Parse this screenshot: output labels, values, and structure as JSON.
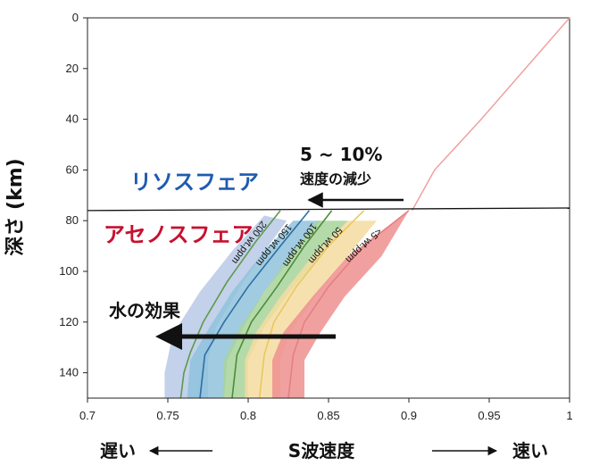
{
  "chart_data": {
    "type": "area",
    "xlabel": "S波速度",
    "ylabel": "深さ (km)",
    "xlim": [
      0.7,
      1.0
    ],
    "ylim": [
      0,
      150
    ],
    "y_inverted": true,
    "x_ticks": [
      "0.7",
      "0.75",
      "0.8",
      "0.85",
      "0.9",
      "0.95",
      "1"
    ],
    "y_ticks": [
      "0",
      "20",
      "40",
      "60",
      "80",
      "100",
      "120",
      "140"
    ],
    "x_axis_slow_label": "遅い",
    "x_axis_fast_label": "速い",
    "boundary_depth": [
      76,
      75
    ],
    "layer_labels": {
      "lithosphere": "リソスフェア",
      "asthenosphere": "アセノスフェア"
    },
    "annotations": {
      "reduction_pct": "5 ~ 10%",
      "reduction_label": "速度の減少",
      "water_effect": "水の効果"
    },
    "reference_curve": {
      "depth": [
        0,
        40,
        60,
        76
      ],
      "velocity": [
        1.0,
        0.945,
        0.916,
        0.902
      ],
      "color": "#f0a0a0"
    },
    "series": [
      {
        "name": "200 wt.ppm",
        "color": "#5e9a4b",
        "band_color": "#b9c9e6",
        "center": [
          [
            0.82,
            76
          ],
          [
            0.805,
            88
          ],
          [
            0.787,
            104
          ],
          [
            0.772,
            120
          ],
          [
            0.764,
            132
          ],
          [
            0.76,
            140
          ],
          [
            0.758,
            150
          ]
        ],
        "left": [
          [
            0.81,
            78
          ],
          [
            0.79,
            92
          ],
          [
            0.77,
            108
          ],
          [
            0.753,
            125
          ],
          [
            0.748,
            140
          ],
          [
            0.748,
            150
          ]
        ],
        "right": [
          [
            0.824,
            80
          ],
          [
            0.808,
            94
          ],
          [
            0.793,
            108
          ],
          [
            0.78,
            122
          ],
          [
            0.775,
            135
          ],
          [
            0.775,
            150
          ]
        ]
      },
      {
        "name": "150 wt.ppm",
        "color": "#2c6fa3",
        "band_color": "#8fc2dc",
        "center": [
          [
            0.838,
            76
          ],
          [
            0.82,
            90
          ],
          [
            0.8,
            106
          ],
          [
            0.785,
            120
          ],
          [
            0.773,
            133
          ],
          [
            0.77,
            150
          ]
        ],
        "left": [
          [
            0.828,
            80
          ],
          [
            0.81,
            92
          ],
          [
            0.79,
            108
          ],
          [
            0.776,
            122
          ],
          [
            0.764,
            135
          ],
          [
            0.762,
            150
          ]
        ],
        "right": [
          [
            0.845,
            80
          ],
          [
            0.828,
            94
          ],
          [
            0.81,
            108
          ],
          [
            0.797,
            122
          ],
          [
            0.787,
            135
          ],
          [
            0.785,
            150
          ]
        ]
      },
      {
        "name": "100 wt.ppm",
        "color": "#4a8e3a",
        "band_color": "#a8d49a",
        "center": [
          [
            0.852,
            76
          ],
          [
            0.835,
            90
          ],
          [
            0.818,
            106
          ],
          [
            0.802,
            120
          ],
          [
            0.793,
            133
          ],
          [
            0.79,
            150
          ]
        ],
        "left": [
          [
            0.843,
            80
          ],
          [
            0.828,
            92
          ],
          [
            0.81,
            108
          ],
          [
            0.795,
            122
          ],
          [
            0.785,
            135
          ],
          [
            0.784,
            150
          ]
        ],
        "right": [
          [
            0.862,
            80
          ],
          [
            0.845,
            94
          ],
          [
            0.826,
            108
          ],
          [
            0.81,
            122
          ],
          [
            0.8,
            135
          ],
          [
            0.8,
            150
          ]
        ]
      },
      {
        "name": "50 wt.ppm",
        "color": "#e8c860",
        "band_color": "#f5dca0",
        "center": [
          [
            0.872,
            76
          ],
          [
            0.85,
            90
          ],
          [
            0.83,
            106
          ],
          [
            0.816,
            120
          ],
          [
            0.81,
            133
          ],
          [
            0.807,
            150
          ]
        ],
        "left": [
          [
            0.862,
            80
          ],
          [
            0.84,
            94
          ],
          [
            0.82,
            110
          ],
          [
            0.805,
            124
          ],
          [
            0.798,
            135
          ],
          [
            0.798,
            150
          ]
        ],
        "right": [
          [
            0.88,
            80
          ],
          [
            0.862,
            94
          ],
          [
            0.842,
            110
          ],
          [
            0.826,
            124
          ],
          [
            0.82,
            135
          ],
          [
            0.82,
            150
          ]
        ]
      },
      {
        "name": "<5 wt.ppm",
        "color": "#e58080",
        "band_color": "#ef8f8f",
        "center": [
          [
            0.9,
            76
          ],
          [
            0.872,
            90
          ],
          [
            0.85,
            106
          ],
          [
            0.835,
            120
          ],
          [
            0.828,
            133
          ],
          [
            0.825,
            150
          ]
        ],
        "left": [
          [
            0.9,
            76
          ],
          [
            0.862,
            94
          ],
          [
            0.84,
            110
          ],
          [
            0.822,
            124
          ],
          [
            0.815,
            135
          ],
          [
            0.815,
            150
          ]
        ],
        "right": [
          [
            0.9,
            76
          ],
          [
            0.883,
            94
          ],
          [
            0.86,
            110
          ],
          [
            0.845,
            124
          ],
          [
            0.835,
            135
          ],
          [
            0.835,
            150
          ]
        ]
      }
    ]
  }
}
